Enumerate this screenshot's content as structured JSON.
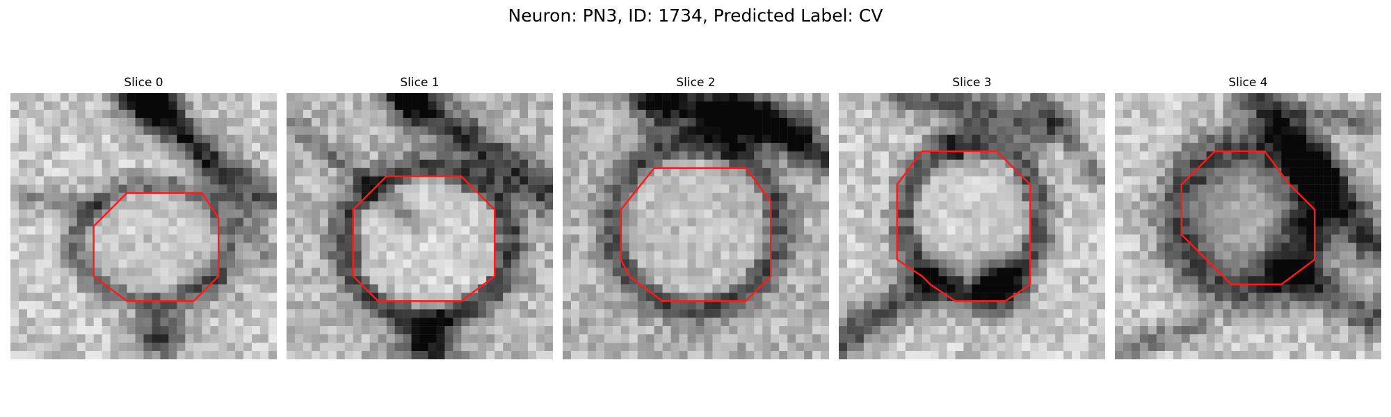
{
  "figure": {
    "title": "Neuron: PN3, ID: 1734, Predicted Label: CV"
  },
  "panels": [
    {
      "title": "Slice 0"
    },
    {
      "title": "Slice 1"
    },
    {
      "title": "Slice 2"
    },
    {
      "title": "Slice 3"
    },
    {
      "title": "Slice 4"
    }
  ],
  "colors": {
    "contour": "#ff1a1a",
    "background": "#ffffff"
  }
}
